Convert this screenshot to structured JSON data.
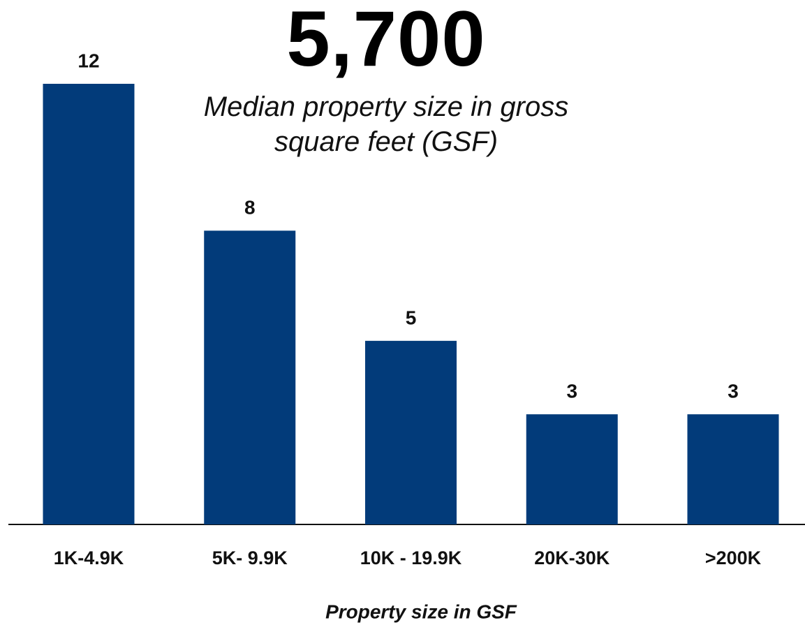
{
  "chart_data": {
    "type": "bar",
    "annotation": "5,700",
    "subtitle": "Median property size in gross square feet (GSF)",
    "xlabel": "Property size in GSF",
    "categories": [
      "1K-4.9K",
      "5K- 9.9K",
      "10K - 19.9K",
      "20K-30K",
      ">200K"
    ],
    "values": [
      12,
      8,
      5,
      3,
      3
    ],
    "color": "#023b7a"
  }
}
